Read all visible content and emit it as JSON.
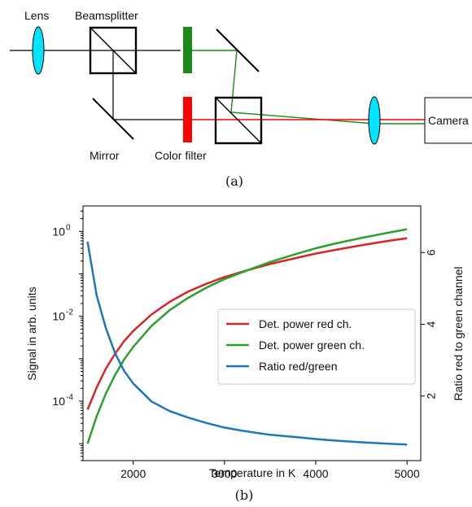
{
  "diagram": {
    "labels": {
      "lens": "Lens",
      "beamsplitter": "Beamsplitter",
      "mirror": "Mirror",
      "color_filter": "Color filter",
      "camera": "Camera"
    },
    "caption": "(a)",
    "colors": {
      "lens": "#00e5ff",
      "green_filter": "#1a8a1a",
      "red_filter": "#ff0000",
      "green_beam": "#1a8a1a",
      "red_beam": "#ff0000"
    }
  },
  "plot_caption": "(b)",
  "chart_data": {
    "type": "line",
    "xlabel": "Temperature in K",
    "ylabel_left": "Signal in arb. units",
    "ylabel_right": "Ratio red to green channel",
    "xlim": [
      1450,
      5150
    ],
    "ylim_left_log10": [
      -5.4,
      0.6
    ],
    "ylim_right": [
      0.2,
      7.3
    ],
    "yscale_left": "log",
    "grid": false,
    "legend_position": "center-right",
    "x_ticks": [
      2000,
      3000,
      4000,
      5000
    ],
    "y_left_ticks": [
      {
        "base": "10",
        "exp": "0",
        "value": 1
      },
      {
        "base": "10",
        "exp": "-2",
        "value": 0.01
      },
      {
        "base": "10",
        "exp": "-4",
        "value": 0.0001
      }
    ],
    "y_right_ticks": [
      2,
      4,
      6
    ],
    "x": [
      1500,
      1600,
      1700,
      1800,
      1900,
      2000,
      2200,
      2400,
      2600,
      2800,
      3000,
      3200,
      3500,
      3800,
      4000,
      4200,
      4500,
      4800,
      5000
    ],
    "series": [
      {
        "name": "Det. power red ch.",
        "axis": "left",
        "color": "#d62728",
        "values": [
          6.3e-05,
          0.00021,
          0.00058,
          0.0013,
          0.0026,
          0.0045,
          0.011,
          0.022,
          0.038,
          0.058,
          0.084,
          0.113,
          0.17,
          0.24,
          0.3,
          0.36,
          0.47,
          0.6,
          0.69
        ]
      },
      {
        "name": "Det. power green ch.",
        "axis": "left",
        "color": "#2ca02c",
        "values": [
          1e-05,
          4.4e-05,
          0.00015,
          0.00041,
          0.00096,
          0.0019,
          0.0059,
          0.014,
          0.027,
          0.047,
          0.075,
          0.11,
          0.19,
          0.3,
          0.4,
          0.51,
          0.7,
          0.93,
          1.12
        ]
      },
      {
        "name": "Ratio red/green",
        "axis": "right",
        "color": "#1f77b4",
        "values": [
          6.3,
          4.8,
          3.9,
          3.2,
          2.7,
          2.35,
          1.85,
          1.58,
          1.4,
          1.25,
          1.12,
          1.03,
          0.92,
          0.85,
          0.8,
          0.76,
          0.71,
          0.67,
          0.65
        ]
      }
    ]
  }
}
